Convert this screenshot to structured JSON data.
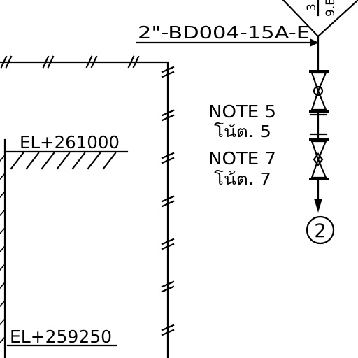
{
  "drawing": {
    "line_label": "2\"-BD004-15A-E",
    "notes": [
      {
        "en": "NOTE 5",
        "th": "โน้ต. 5"
      },
      {
        "en": "NOTE 7",
        "th": "โน้ต. 7"
      }
    ],
    "elevations": {
      "upper": "EL+261000",
      "lower": "EL+259250"
    },
    "connector": "2",
    "tag_fragments": [
      "9.E",
      "3"
    ],
    "colors": {
      "ink": "#000000",
      "paper": "#ffffff"
    }
  }
}
